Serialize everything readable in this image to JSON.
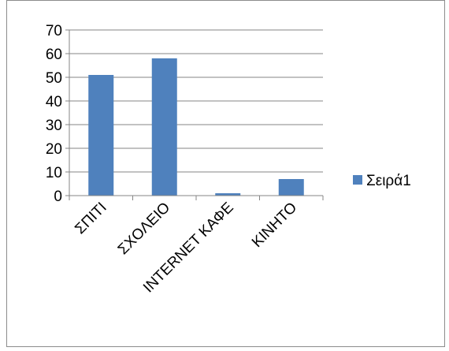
{
  "chart_data": {
    "type": "bar",
    "categories": [
      "ΣΠΙΤΙ",
      "ΣΧΟΛΕΙΟ",
      "INTERNET ΚΑΦΕ",
      "ΚΙΝΗΤΟ"
    ],
    "series": [
      {
        "name": "Σειρά1",
        "values": [
          51,
          58,
          1,
          7
        ],
        "color": "#4f81bd"
      }
    ],
    "ylim": [
      0,
      70
    ],
    "yticks": [
      0,
      10,
      20,
      30,
      40,
      50,
      60,
      70
    ],
    "grid": true,
    "legend_position": "right"
  }
}
